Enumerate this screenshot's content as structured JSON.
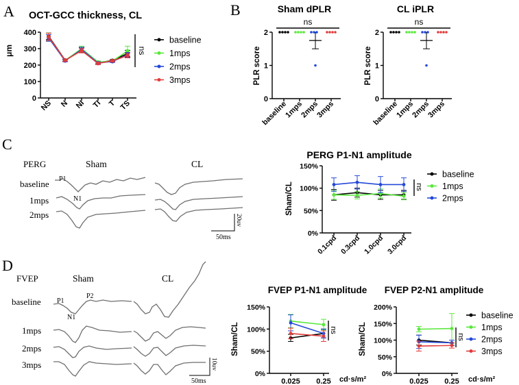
{
  "panels": {
    "A": "A",
    "B": "B",
    "C": "C",
    "D": "D"
  },
  "colors": {
    "baseline": "#000000",
    "1mps": "#58e83a",
    "2mps": "#2448d8",
    "3mps": "#e23b3b"
  },
  "chart_data": [
    {
      "id": "A",
      "type": "line",
      "title": "OCT-GCC thickness, CL",
      "xlabel": "",
      "ylabel": "μm",
      "categories": [
        "NS",
        "N",
        "NI",
        "TI",
        "T",
        "TS"
      ],
      "ylim": [
        0,
        400
      ],
      "yticks": [
        "0",
        "100",
        "200",
        "300",
        "400"
      ],
      "series": [
        {
          "name": "baseline",
          "key": "baseline",
          "values": [
            375,
            230,
            290,
            215,
            228,
            270
          ],
          "err": [
            20,
            6,
            15,
            7,
            6,
            20
          ]
        },
        {
          "name": "1mps",
          "key": "1mps",
          "values": [
            370,
            228,
            300,
            218,
            225,
            285
          ],
          "err": [
            25,
            6,
            15,
            7,
            6,
            30
          ]
        },
        {
          "name": "2mps",
          "key": "2mps",
          "values": [
            365,
            226,
            295,
            213,
            222,
            262
          ],
          "err": [
            20,
            6,
            14,
            7,
            6,
            15
          ]
        },
        {
          "name": "3mps",
          "key": "3mps",
          "values": [
            372,
            229,
            288,
            210,
            226,
            258
          ],
          "err": [
            22,
            6,
            14,
            7,
            6,
            14
          ]
        }
      ],
      "annotation": "ns"
    },
    {
      "id": "B1",
      "type": "scatter",
      "title": "Sham dPLR",
      "ylabel": "PLR score",
      "categories": [
        "baseline",
        "1mps",
        "2mps",
        "3mps"
      ],
      "ylim": [
        0,
        2
      ],
      "yticks": [
        "0",
        "1",
        "2"
      ],
      "groups": [
        {
          "key": "baseline",
          "points": [
            2,
            2,
            2,
            2
          ]
        },
        {
          "key": "1mps",
          "points": [
            2,
            2,
            2,
            2
          ]
        },
        {
          "key": "2mps",
          "points": [
            2,
            2,
            2,
            1
          ],
          "mean": 1.75,
          "sem": 0.25
        },
        {
          "key": "3mps",
          "points": [
            2,
            2,
            2,
            2
          ]
        }
      ],
      "annotation": "ns"
    },
    {
      "id": "B2",
      "type": "scatter",
      "title": "CL iPLR",
      "ylabel": "PLR score",
      "categories": [
        "baseline",
        "1mps",
        "2mps",
        "3mps"
      ],
      "ylim": [
        0,
        2
      ],
      "yticks": [
        "0",
        "1",
        "2"
      ],
      "groups": [
        {
          "key": "baseline",
          "points": [
            2,
            2,
            2,
            2
          ]
        },
        {
          "key": "1mps",
          "points": [
            2,
            2,
            2,
            2
          ]
        },
        {
          "key": "2mps",
          "points": [
            2,
            2,
            2,
            1
          ],
          "mean": 1.75,
          "sem": 0.25
        },
        {
          "key": "3mps",
          "points": [
            2,
            2,
            2,
            2
          ]
        }
      ],
      "annotation": "ns"
    },
    {
      "id": "C",
      "type": "line",
      "title": "PERG P1-N1 amplitude",
      "ylabel": "Sham/CL",
      "categories": [
        "0.1cpd",
        "0.3cpd",
        "1.0cpd",
        "3.0cpd"
      ],
      "ylim": [
        0,
        150
      ],
      "yticks": [
        "0%",
        "50%",
        "100%",
        "150%"
      ],
      "series": [
        {
          "name": "baseline",
          "key": "baseline",
          "values": [
            85,
            90,
            85,
            85
          ],
          "err": [
            12,
            10,
            10,
            10
          ]
        },
        {
          "name": "1mps",
          "key": "1mps",
          "values": [
            85,
            84,
            88,
            82
          ],
          "err": [
            10,
            8,
            10,
            8
          ]
        },
        {
          "name": "2mps",
          "key": "2mps",
          "values": [
            108,
            113,
            108,
            108
          ],
          "err": [
            15,
            15,
            18,
            15
          ]
        }
      ],
      "annotation": "ns"
    },
    {
      "id": "D1",
      "type": "line",
      "title": "FVEP P1-N1 amplitude",
      "ylabel": "Sham/CL",
      "xlabel": "cd·s/m²",
      "categories": [
        "0.025",
        "0.25"
      ],
      "ylim": [
        0,
        150
      ],
      "yticks": [
        "0%",
        "50%",
        "100%",
        "150%"
      ],
      "series": [
        {
          "name": "baseline",
          "key": "baseline",
          "values": [
            80,
            90
          ],
          "err": [
            8,
            10
          ]
        },
        {
          "name": "1mps",
          "key": "1mps",
          "values": [
            118,
            110
          ],
          "err": [
            15,
            12
          ]
        },
        {
          "name": "2mps",
          "key": "2mps",
          "values": [
            114,
            90
          ],
          "err": [
            18,
            10
          ]
        },
        {
          "name": "3mps",
          "key": "3mps",
          "values": [
            90,
            84
          ],
          "err": [
            12,
            12
          ]
        }
      ],
      "annotation": "ns"
    },
    {
      "id": "D2",
      "type": "line",
      "title": "FVEP P2-N1 amplitude",
      "ylabel": "Sham/CL",
      "xlabel": "cd·s/m²",
      "categories": [
        "0.025",
        "0.25"
      ],
      "ylim": [
        0,
        200
      ],
      "yticks": [
        "0%",
        "50%",
        "100%",
        "150%",
        "200%"
      ],
      "series": [
        {
          "name": "baseline",
          "key": "baseline",
          "values": [
            100,
            92
          ],
          "err": [
            15,
            8
          ]
        },
        {
          "name": "1mps",
          "key": "1mps",
          "values": [
            133,
            135
          ],
          "err": [
            8,
            45
          ]
        },
        {
          "name": "2mps",
          "key": "2mps",
          "values": [
            95,
            92
          ],
          "err": [
            20,
            8
          ]
        },
        {
          "name": "3mps",
          "key": "3mps",
          "values": [
            82,
            84
          ],
          "err": [
            15,
            8
          ]
        }
      ],
      "annotation": "ns"
    }
  ],
  "legends": {
    "A": [
      "baseline",
      "1mps",
      "2mps",
      "3mps"
    ],
    "C": [
      "baseline",
      "1mps",
      "2mps"
    ],
    "D": [
      "baseline",
      "1mps",
      "2mps",
      "3mps"
    ]
  },
  "perg": {
    "label": "PERG",
    "sham": "Sham",
    "cl": "CL",
    "rows": [
      "baseline",
      "1mps",
      "2mps"
    ],
    "p1": "P1",
    "n1": "N1",
    "scale_v": "20uv",
    "scale_t": "50ms"
  },
  "fvep": {
    "label": "FVEP",
    "sham": "Sham",
    "cl": "CL",
    "rows": [
      "baseline",
      "1mps",
      "2mps",
      "3mps"
    ],
    "p1": "P1",
    "n1": "N1",
    "p2": "P2",
    "scale_v": "10uv",
    "scale_t": "50ms"
  }
}
